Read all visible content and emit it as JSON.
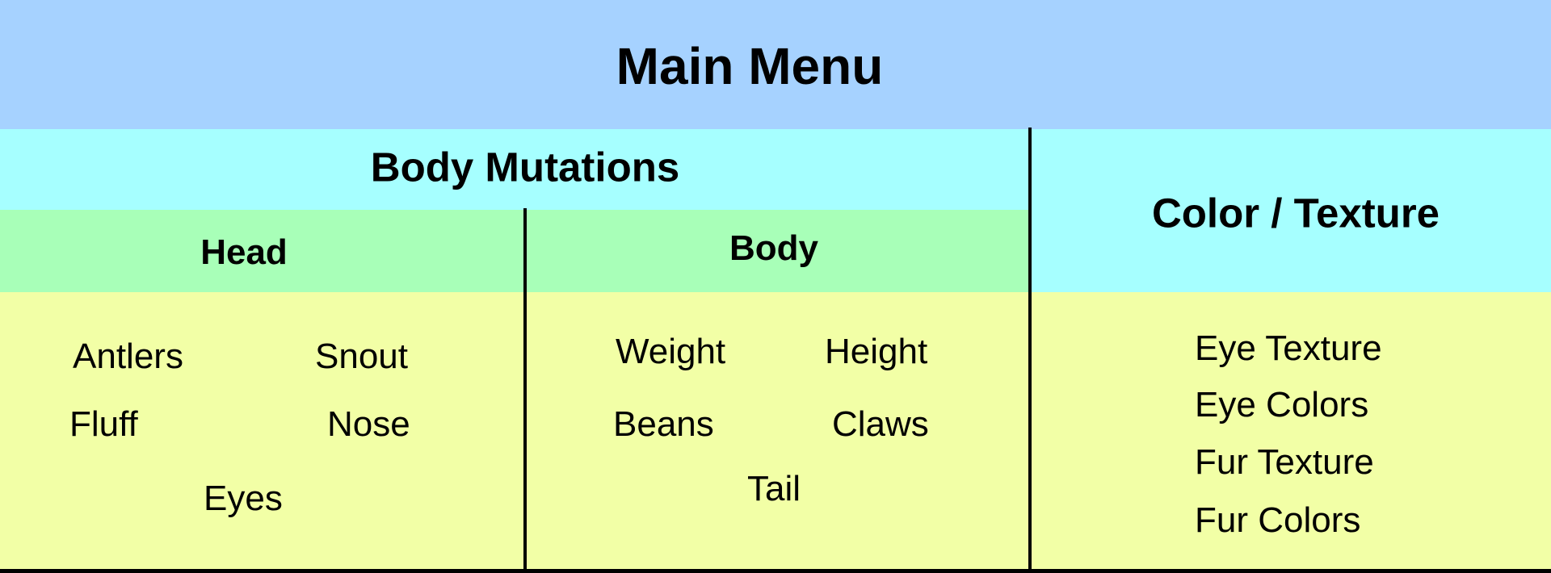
{
  "main_menu": {
    "title": "Main Menu"
  },
  "body_mutations": {
    "title": "Body Mutations",
    "head": {
      "title": "Head",
      "items": [
        "Antlers",
        "Snout",
        "Fluff",
        "Nose",
        "Eyes"
      ]
    },
    "body": {
      "title": "Body",
      "items": [
        "Weight",
        "Height",
        "Beans",
        "Claws",
        "Tail"
      ]
    }
  },
  "color_texture": {
    "title": "Color / Texture",
    "items": [
      "Eye Texture",
      "Eye Colors",
      "Fur Texture",
      "Fur Colors"
    ]
  },
  "colors": {
    "main_header": "#a6d2ff",
    "section_header": "#a6ffff",
    "sub_header": "#a8ffb8",
    "content": "#f2ffa6"
  }
}
